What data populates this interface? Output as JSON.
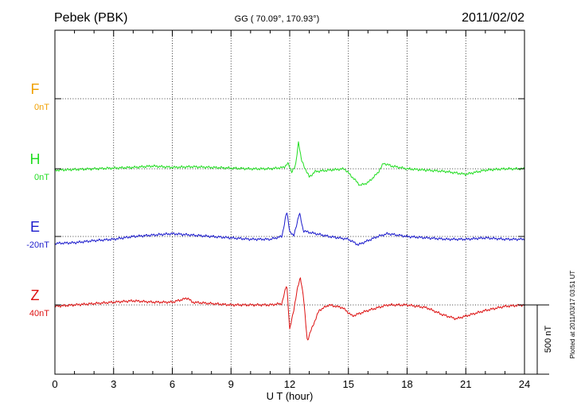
{
  "header": {
    "station": "Pebek (PBK)",
    "coords": "GG ( 70.09°, 170.93°)",
    "date": "2011/02/02"
  },
  "side_note": "Plotted at 2011/03/17 03:51  UT",
  "chart_data": {
    "type": "line",
    "xlabel": "U T (hour)",
    "xlim": [
      0,
      24
    ],
    "xticks": [
      "0",
      "3",
      "6",
      "9",
      "12",
      "15",
      "18",
      "21",
      "24"
    ],
    "scale_bar": {
      "label": "500 nT",
      "value_nT": 500
    },
    "grid": true,
    "series": [
      {
        "name": "F",
        "baseline": "0nT",
        "color": "#f0a000",
        "x": [],
        "y": []
      },
      {
        "name": "H",
        "baseline": "0nT",
        "color": "#22dd22",
        "x": [
          0,
          1,
          2,
          3,
          4,
          5,
          6,
          7,
          8,
          9,
          10,
          11,
          11.7,
          11.9,
          12.1,
          12.3,
          12.45,
          12.6,
          12.8,
          13.0,
          13.3,
          14.0,
          14.8,
          15.2,
          15.6,
          16.0,
          16.5,
          16.8,
          17.2,
          18,
          19,
          20,
          21,
          22,
          23,
          24
        ],
        "y": [
          -10,
          -5,
          0,
          5,
          10,
          20,
          10,
          15,
          10,
          5,
          0,
          0,
          10,
          40,
          -20,
          20,
          200,
          60,
          0,
          -60,
          -20,
          -10,
          0,
          -60,
          -120,
          -100,
          -30,
          40,
          20,
          0,
          -10,
          -20,
          -40,
          -10,
          0,
          0
        ]
      },
      {
        "name": "E",
        "baseline": "-20nT",
        "color": "#1a1acc",
        "x": [
          0,
          1,
          2,
          3,
          4,
          5,
          6,
          7,
          8,
          9,
          10,
          11,
          11.6,
          11.85,
          12.0,
          12.2,
          12.5,
          12.7,
          13.0,
          14.0,
          15.0,
          15.5,
          16.0,
          16.5,
          17.0,
          18,
          19,
          20,
          21,
          22,
          23,
          24
        ],
        "y": [
          -50,
          -45,
          -30,
          -20,
          0,
          10,
          20,
          10,
          0,
          -10,
          -20,
          -20,
          0,
          180,
          40,
          0,
          170,
          40,
          30,
          0,
          -20,
          -60,
          -30,
          0,
          20,
          0,
          -10,
          -20,
          -20,
          -10,
          -20,
          -20
        ]
      },
      {
        "name": "Z",
        "baseline": "40nT",
        "color": "#dd1111",
        "x": [
          0,
          1,
          2,
          3,
          4,
          5,
          6,
          6.8,
          7,
          8,
          9,
          10,
          11,
          11.6,
          11.85,
          12.0,
          12.2,
          12.4,
          12.55,
          12.7,
          12.9,
          13.1,
          13.5,
          14.0,
          14.7,
          15.2,
          15.6,
          16.0,
          17.0,
          18,
          19,
          19.8,
          20.5,
          21,
          22,
          23,
          24
        ],
        "y": [
          -10,
          0,
          10,
          20,
          30,
          20,
          20,
          50,
          20,
          10,
          0,
          0,
          0,
          10,
          150,
          -180,
          -40,
          120,
          200,
          60,
          -260,
          -180,
          -40,
          0,
          -20,
          -80,
          -60,
          -40,
          0,
          0,
          -20,
          -70,
          -100,
          -80,
          -40,
          -10,
          0
        ]
      }
    ]
  }
}
